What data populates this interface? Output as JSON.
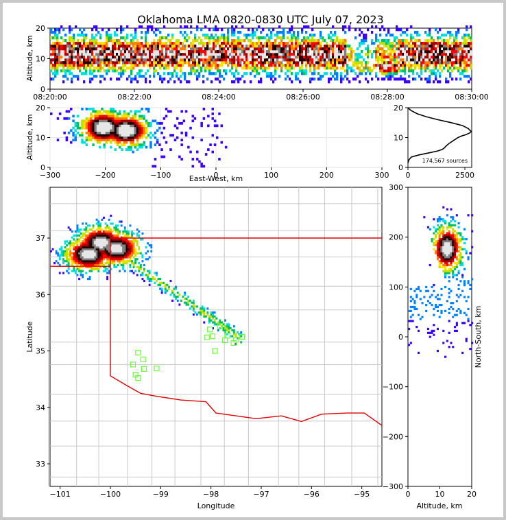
{
  "title": "Oklahoma LMA 0820-0830 UTC July 07, 2023",
  "colors": {
    "border": "#e00000",
    "county": "#c8c8c8",
    "station": "#66ff33",
    "profile": "#000000",
    "scale": [
      "#3b00ff",
      "#0080ff",
      "#00e0e0",
      "#00c060",
      "#c0e000",
      "#ffe000",
      "#ff8000",
      "#ff0000",
      "#a00000",
      "#200000",
      "#808080",
      "#e6e6e6"
    ]
  },
  "chart_data": [
    {
      "id": "time-height",
      "type": "heatmap",
      "ylabel": "Altitude, km",
      "ylim": [
        0,
        20
      ],
      "xlim": [
        "08:20:00",
        "08:30:00"
      ],
      "y_ticks": [
        "0",
        "10",
        "20"
      ],
      "x_ticks": [
        "08:20:00",
        "08:22:00",
        "08:24:00",
        "08:26:00",
        "08:28:00",
        "08:30:00"
      ],
      "altitude_band_km": [
        2,
        20
      ],
      "core_altitude_km": [
        6,
        16
      ]
    },
    {
      "id": "east-west-height",
      "type": "heatmap",
      "xlabel": "East-West, km",
      "ylabel": "Altitude, km",
      "xlim": [
        -300,
        300
      ],
      "ylim": [
        0,
        20
      ],
      "x_ticks": [
        "−300",
        "−200",
        "−100",
        "0",
        "100",
        "200",
        "300"
      ],
      "y_ticks": [
        "0",
        "10",
        "20"
      ],
      "cores": [
        {
          "x": -205,
          "alt": 13
        },
        {
          "x": -165,
          "alt": 12
        }
      ],
      "extent_x": [
        -300,
        20
      ]
    },
    {
      "id": "altitude-histogram",
      "type": "line",
      "xlim": [
        0,
        2800
      ],
      "ylim": [
        0,
        20
      ],
      "x_ticks": [
        "0",
        "2500"
      ],
      "y_ticks": [
        "0",
        "10",
        "20"
      ],
      "annotation": "174,567 sources",
      "series": [
        {
          "x": [
            0,
            40,
            150,
            500,
            1000,
            1300,
            1500,
            1600,
            1650,
            1800,
            2000,
            2200,
            2350,
            2550,
            2700,
            2780,
            2650,
            2400,
            1900,
            1300,
            800,
            400,
            150,
            60,
            20
          ],
          "y": [
            1.5,
            2.5,
            3.5,
            4.2,
            5,
            5.5,
            6,
            6.5,
            7,
            8,
            9,
            10,
            10.5,
            11,
            11.5,
            12,
            13,
            14,
            15,
            16,
            17,
            18,
            19,
            19.5,
            20
          ]
        }
      ]
    },
    {
      "id": "plan-view",
      "type": "heatmap",
      "xlabel": "Longitude",
      "ylabel": "Latitude",
      "xlim": [
        -101.2,
        -94.6
      ],
      "ylim": [
        32.6,
        37.9
      ],
      "x_ticks": [
        "−101",
        "−100",
        "−99",
        "−98",
        "−97",
        "−96",
        "−95"
      ],
      "y_ticks": [
        "33",
        "34",
        "35",
        "36",
        "37"
      ],
      "cores": [
        {
          "lon": -100.2,
          "lat": 36.9
        },
        {
          "lon": -100.45,
          "lat": 36.7
        },
        {
          "lon": -99.9,
          "lat": 36.8
        }
      ],
      "stations": [
        {
          "lon": -99.45,
          "lat": 34.97
        },
        {
          "lon": -99.35,
          "lat": 34.85
        },
        {
          "lon": -99.55,
          "lat": 34.76
        },
        {
          "lon": -99.33,
          "lat": 34.68
        },
        {
          "lon": -99.5,
          "lat": 34.58
        },
        {
          "lon": -99.45,
          "lat": 34.52
        },
        {
          "lon": -99.08,
          "lat": 34.69
        },
        {
          "lon": -97.82,
          "lat": 35.44
        },
        {
          "lon": -98.02,
          "lat": 35.38
        },
        {
          "lon": -97.97,
          "lat": 35.26
        },
        {
          "lon": -98.08,
          "lat": 35.24
        },
        {
          "lon": -97.67,
          "lat": 35.27
        },
        {
          "lon": -97.72,
          "lat": 35.19
        },
        {
          "lon": -97.55,
          "lat": 35.14
        },
        {
          "lon": -97.5,
          "lat": 35.2
        },
        {
          "lon": -97.38,
          "lat": 35.25
        },
        {
          "lon": -97.92,
          "lat": 35.0
        }
      ]
    },
    {
      "id": "north-south-height",
      "type": "heatmap",
      "xlabel": "Altitude, km",
      "ylabel": "North-South, km",
      "xlim": [
        0,
        20
      ],
      "ylim": [
        -300,
        300
      ],
      "x_ticks": [
        "0",
        "10",
        "20"
      ],
      "y_ticks": [
        "−300",
        "−200",
        "−100",
        "0",
        "100",
        "200",
        "300"
      ],
      "core": {
        "alt": 12,
        "ns": 175
      },
      "extent_ns": [
        -50,
        300
      ]
    }
  ]
}
